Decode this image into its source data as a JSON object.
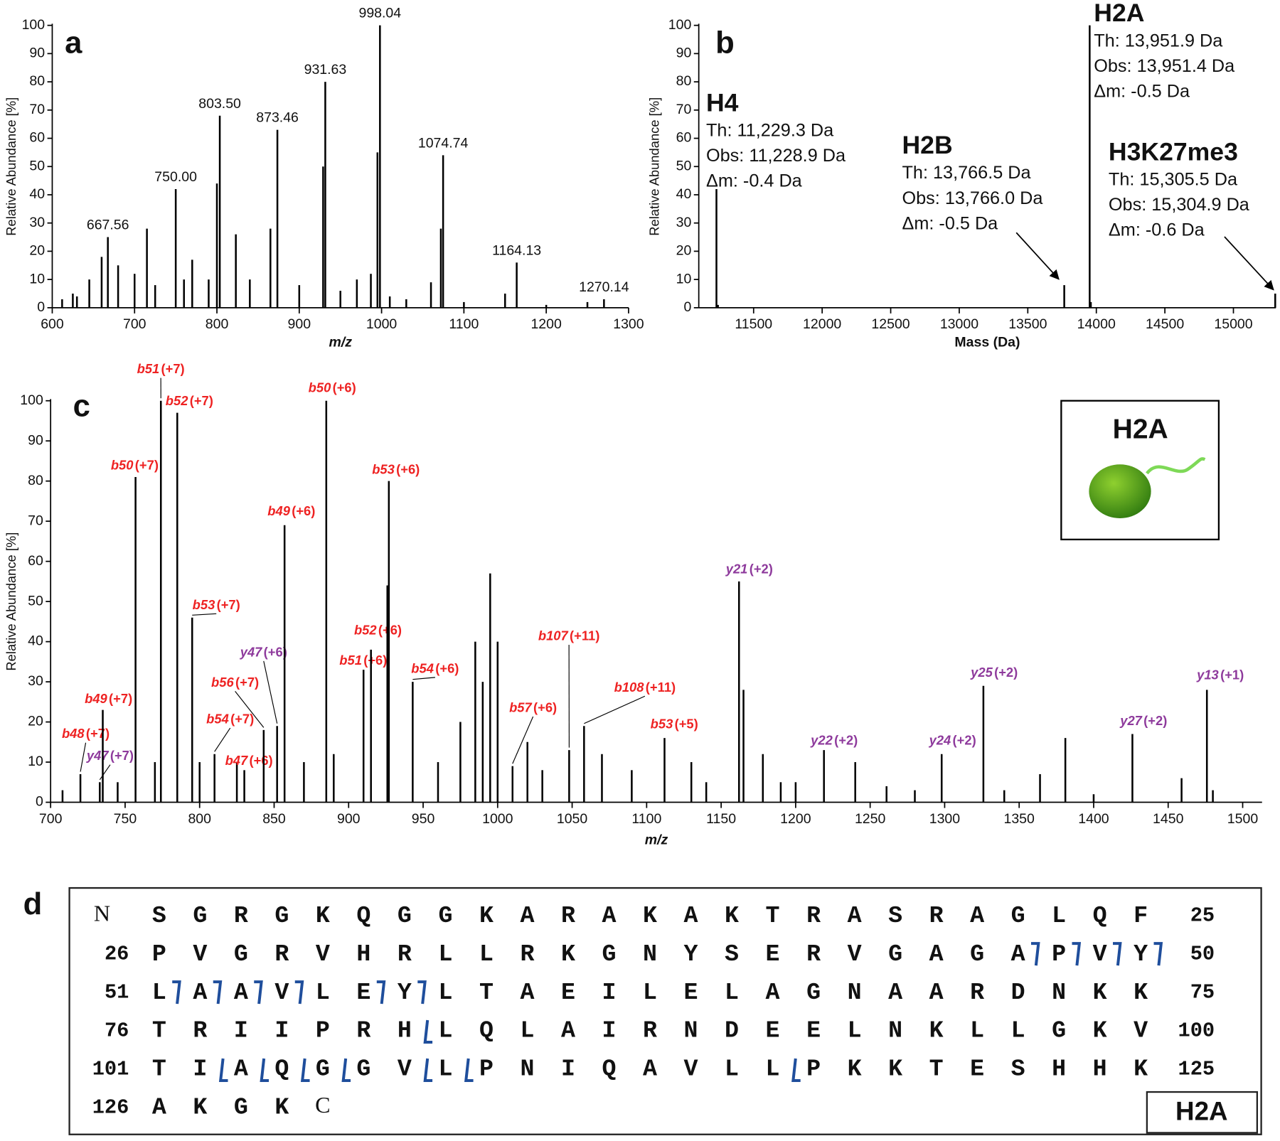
{
  "chart_data": [
    {
      "type": "stem",
      "panel": "a",
      "ylabel": "Relative Abundance [%]",
      "xlabel": "m/z",
      "color": "#000000",
      "x": [
        612,
        625,
        630,
        645,
        660,
        667.56,
        680,
        700,
        715,
        725,
        750,
        760,
        770,
        790,
        800,
        803.5,
        823,
        840,
        865,
        873.46,
        900,
        929,
        931.63,
        950,
        970,
        987,
        995,
        998.04,
        1010,
        1030,
        1060,
        1072,
        1074.74,
        1100,
        1150,
        1164.13,
        1200,
        1250,
        1270.14
      ],
      "values": [
        3,
        5,
        4,
        10,
        18,
        25,
        15,
        12,
        28,
        8,
        42,
        10,
        17,
        10,
        44,
        68,
        26,
        10,
        28,
        63,
        8,
        50,
        80,
        6,
        10,
        12,
        55,
        100,
        4,
        3,
        9,
        28,
        54,
        2,
        5,
        16,
        1,
        2,
        3
      ],
      "x_labels": [
        null,
        null,
        null,
        null,
        null,
        "667.56",
        null,
        null,
        null,
        null,
        "750.00",
        null,
        null,
        null,
        null,
        "803.50",
        null,
        null,
        null,
        "873.46",
        null,
        null,
        "931.63",
        null,
        null,
        null,
        null,
        "998.04",
        null,
        null,
        null,
        null,
        "1074.74",
        null,
        null,
        "1164.13",
        null,
        null,
        "1270.14"
      ],
      "xlim": [
        600,
        1300
      ],
      "xticks": [
        600,
        700,
        800,
        900,
        1000,
        1100,
        1200,
        1300
      ],
      "ylim": [
        0,
        100
      ],
      "yticks": [
        0,
        10,
        20,
        30,
        40,
        50,
        60,
        70,
        80,
        90,
        100
      ]
    },
    {
      "type": "stem",
      "panel": "b",
      "ylabel": "Relative Abundance [%]",
      "xlabel": "Mass (Da)",
      "color": "#000000",
      "x": [
        11228.9,
        11240,
        13766.0,
        13951.4,
        13960,
        15304.9
      ],
      "values": [
        42,
        1,
        8,
        100,
        2,
        5
      ],
      "xlim": [
        11100,
        15310
      ],
      "xticks": [
        11500,
        12000,
        12500,
        13000,
        13500,
        14000,
        14500,
        15000
      ],
      "ylim": [
        0,
        100
      ],
      "yticks": [
        0,
        10,
        20,
        30,
        40,
        50,
        60,
        70,
        80,
        90,
        100
      ],
      "annotations": [
        {
          "name": "H4",
          "color": "#8e3a9c",
          "lines": [
            "Th: 11,229.3 Da",
            "Obs: 11,228.9 Da",
            "Δm: -0.4 Da"
          ]
        },
        {
          "name": "H2B",
          "color": "#1e88c8",
          "lines": [
            "Th: 13,766.5 Da",
            "Obs: 13,766.0 Da",
            "Δm: -0.5 Da"
          ]
        },
        {
          "name": "H2A",
          "color": "#1aa050",
          "lines": [
            "Th: 13,951.9 Da",
            "Obs: 13,951.4 Da",
            "Δm: -0.5 Da"
          ]
        },
        {
          "name": "H3K27me3",
          "color": "#ee2222",
          "lines": [
            "Th: 15,305.5 Da",
            "Obs: 15,304.9 Da",
            "Δm: -0.6 Da"
          ]
        }
      ]
    },
    {
      "type": "stem",
      "panel": "c",
      "ylabel": "Relative Abundance [%]",
      "xlabel": "m/z",
      "color": "#000000",
      "x": [
        708,
        720,
        733,
        735,
        745,
        757,
        770,
        774,
        785,
        795,
        800,
        810,
        825,
        830,
        843,
        852,
        857,
        870,
        885,
        890,
        910,
        915,
        926,
        927,
        943,
        960,
        975,
        985,
        990,
        995,
        1000,
        1010,
        1020,
        1030,
        1048,
        1058,
        1070,
        1090,
        1112,
        1130,
        1140,
        1162,
        1165,
        1178,
        1190,
        1200,
        1219,
        1240,
        1261,
        1280,
        1298,
        1326,
        1340,
        1364,
        1381,
        1400,
        1426,
        1459,
        1476,
        1480
      ],
      "values": [
        3,
        7,
        5,
        23,
        5,
        81,
        10,
        100,
        97,
        46,
        10,
        12,
        10,
        8,
        18,
        19,
        69,
        10,
        100,
        12,
        33,
        38,
        54,
        80,
        30,
        10,
        20,
        40,
        30,
        57,
        40,
        9,
        15,
        8,
        13,
        19,
        12,
        8,
        16,
        10,
        5,
        55,
        28,
        12,
        5,
        5,
        13,
        10,
        4,
        3,
        12,
        29,
        3,
        7,
        16,
        2,
        17,
        6,
        28,
        3
      ],
      "ions": [
        null,
        "b48",
        "y47",
        "b49",
        null,
        "b50",
        null,
        "b51",
        "b52",
        "b53",
        null,
        "b54",
        "b47",
        null,
        "b56",
        "y47",
        "b49",
        null,
        "b50",
        null,
        "b51",
        "b52",
        null,
        "b53",
        "b54",
        null,
        null,
        null,
        null,
        null,
        null,
        "b57",
        null,
        null,
        "b107",
        "b108",
        null,
        null,
        "b53",
        null,
        null,
        "y21",
        null,
        null,
        null,
        null,
        "y22",
        null,
        null,
        null,
        "y24",
        "y25",
        null,
        null,
        null,
        null,
        "y27",
        null,
        "y13",
        null
      ],
      "charges": [
        null,
        "(+7)",
        "(+7)",
        "(+7)",
        null,
        "(+7)",
        null,
        "(+7)",
        "(+7)",
        "(+7)",
        null,
        "(+7)",
        "(+6)",
        null,
        "(+7)",
        "(+6)",
        "(+6)",
        null,
        "(+6)",
        null,
        "(+6)",
        "(+6)",
        null,
        "(+6)",
        "(+6)",
        null,
        null,
        null,
        null,
        null,
        null,
        "(+6)",
        null,
        null,
        "(+11)",
        "(+11)",
        null,
        null,
        "(+5)",
        null,
        null,
        "(+2)",
        null,
        null,
        null,
        null,
        "(+2)",
        null,
        null,
        null,
        "(+2)",
        "(+2)",
        null,
        null,
        null,
        null,
        "(+2)",
        null,
        "(+1)",
        null
      ],
      "ion_colors": {
        "b": "#ee2222",
        "y": "#8e3a9c"
      },
      "xlim": [
        700,
        1513
      ],
      "xticks": [
        700,
        750,
        800,
        850,
        900,
        950,
        1000,
        1050,
        1100,
        1150,
        1200,
        1250,
        1300,
        1350,
        1400,
        1450,
        1500
      ],
      "ylim": [
        0,
        100
      ],
      "yticks": [
        0,
        10,
        20,
        30,
        40,
        50,
        60,
        70,
        80,
        90,
        100
      ],
      "inset": {
        "label": "H2A",
        "color": "#1aa050"
      }
    }
  ],
  "sequence": {
    "panel": "d",
    "label": "H2A",
    "label_color": "#1aa050",
    "site_color": "#1f4e9c",
    "rows": [
      {
        "start": "N",
        "residues": [
          "S",
          "G",
          "R",
          "G",
          "K",
          "Q",
          "G",
          "G",
          "K",
          "A",
          "R",
          "A",
          "K",
          "A",
          "K",
          "T",
          "R",
          "A",
          "S",
          "R",
          "A",
          "G",
          "L",
          "Q",
          "F"
        ],
        "end": 25
      },
      {
        "start": 26,
        "residues": [
          "P",
          "V",
          "G",
          "R",
          "V",
          "H",
          "R",
          "L",
          "L",
          "R",
          "K",
          "G",
          "N",
          "Y",
          "S",
          "E",
          "R",
          "V",
          "G",
          "A",
          "G",
          "A",
          "P",
          "V",
          "Y"
        ],
        "end": 50
      },
      {
        "start": 51,
        "residues": [
          "L",
          "A",
          "A",
          "V",
          "L",
          "E",
          "Y",
          "L",
          "T",
          "A",
          "E",
          "I",
          "L",
          "E",
          "L",
          "A",
          "G",
          "N",
          "A",
          "A",
          "R",
          "D",
          "N",
          "K",
          "K"
        ],
        "end": 75
      },
      {
        "start": 76,
        "residues": [
          "T",
          "R",
          "I",
          "I",
          "P",
          "R",
          "H",
          "L",
          "Q",
          "L",
          "A",
          "I",
          "R",
          "N",
          "D",
          "E",
          "E",
          "L",
          "N",
          "K",
          "L",
          "L",
          "G",
          "K",
          "V"
        ],
        "end": 100
      },
      {
        "start": 101,
        "residues": [
          "T",
          "I",
          "A",
          "Q",
          "G",
          "G",
          "V",
          "L",
          "P",
          "N",
          "I",
          "Q",
          "A",
          "V",
          "L",
          "L",
          "P",
          "K",
          "K",
          "T",
          "E",
          "S",
          "H",
          "H",
          "K"
        ],
        "end": 125
      },
      {
        "start": 126,
        "residues": [
          "A",
          "K",
          "G",
          "K"
        ],
        "end": "C"
      }
    ],
    "b_sites": [
      47,
      48,
      49,
      50,
      51,
      52,
      53,
      54,
      56,
      57
    ],
    "y_sites": [
      83,
      103,
      104,
      105,
      106,
      108,
      109,
      117
    ]
  }
}
